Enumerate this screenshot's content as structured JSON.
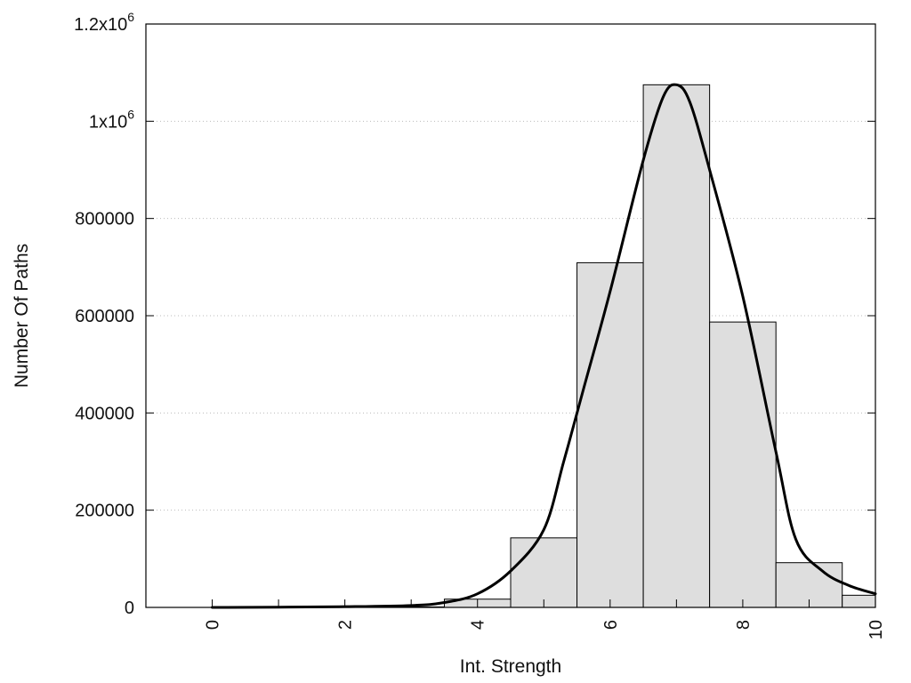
{
  "chart_data": {
    "type": "bar",
    "xlabel": "Int. Strength",
    "ylabel": "Number Of Paths",
    "xlim": [
      -1,
      10
    ],
    "ylim": [
      0,
      1200000
    ],
    "grid": {
      "y": true,
      "x": false,
      "style": "dotted"
    },
    "x_ticks": [
      {
        "value": 0,
        "label": "0"
      },
      {
        "value": 2,
        "label": "2"
      },
      {
        "value": 4,
        "label": "4"
      },
      {
        "value": 6,
        "label": "6"
      },
      {
        "value": 8,
        "label": "8"
      },
      {
        "value": 10,
        "label": "10"
      }
    ],
    "y_ticks": [
      {
        "value": 0,
        "label": "0"
      },
      {
        "value": 200000,
        "label": "200000"
      },
      {
        "value": 400000,
        "label": "400000"
      },
      {
        "value": 600000,
        "label": "600000"
      },
      {
        "value": 800000,
        "label": "800000"
      },
      {
        "value": 1000000,
        "label": "1x10",
        "sup": "6"
      },
      {
        "value": 1200000,
        "label": "1.2x10",
        "sup": "6"
      }
    ],
    "bars": {
      "width": 1,
      "fill": "#dedede",
      "stroke": "#000000",
      "x": [
        0,
        1,
        2,
        3,
        4,
        5,
        6,
        7,
        8,
        9,
        10
      ],
      "values": [
        0,
        0,
        0,
        1000,
        17000,
        143000,
        709000,
        1075000,
        587000,
        92000,
        25000
      ]
    },
    "curve": {
      "type": "line",
      "stroke": "#000000",
      "x": [
        0,
        1,
        2,
        3,
        3.5,
        4,
        4.5,
        5,
        5.3,
        5.6,
        6,
        6.5,
        6.8,
        7.0,
        7.2,
        7.5,
        8,
        8.5,
        8.8,
        9.2,
        9.6,
        10
      ],
      "y": [
        0,
        500,
        1500,
        4000,
        10000,
        28000,
        75000,
        160000,
        300000,
        450000,
        650000,
        920000,
        1050000,
        1075000,
        1040000,
        900000,
        640000,
        320000,
        140000,
        75000,
        45000,
        28000
      ]
    }
  }
}
